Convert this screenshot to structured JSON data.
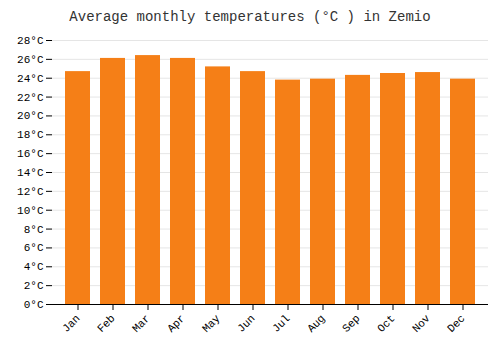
{
  "chart_data": {
    "type": "bar",
    "title": "Average monthly temperatures (°C ) in Zemio",
    "categories": [
      "Jan",
      "Feb",
      "Mar",
      "Apr",
      "May",
      "Jun",
      "Jul",
      "Aug",
      "Sep",
      "Oct",
      "Nov",
      "Dec"
    ],
    "values": [
      24.7,
      26.1,
      26.4,
      26.1,
      25.2,
      24.7,
      23.8,
      23.9,
      24.3,
      24.5,
      24.6,
      23.9
    ],
    "color": "#F57F17",
    "ylim": [
      0,
      28
    ],
    "yticks": [
      {
        "value": 0,
        "label": "0°C"
      },
      {
        "value": 2,
        "label": "2°C"
      },
      {
        "value": 4,
        "label": "4°C"
      },
      {
        "value": 6,
        "label": "6°C"
      },
      {
        "value": 8,
        "label": "8°C"
      },
      {
        "value": 10,
        "label": "10°C"
      },
      {
        "value": 12,
        "label": "12°C"
      },
      {
        "value": 14,
        "label": "14°C"
      },
      {
        "value": 16,
        "label": "16°C"
      },
      {
        "value": 18,
        "label": "18°C"
      },
      {
        "value": 20,
        "label": "20°C"
      },
      {
        "value": 22,
        "label": "22°C"
      },
      {
        "value": 24,
        "label": "24°C"
      },
      {
        "value": 26,
        "label": "26°C"
      },
      {
        "value": 28,
        "label": "28°C"
      }
    ],
    "grid": true
  }
}
